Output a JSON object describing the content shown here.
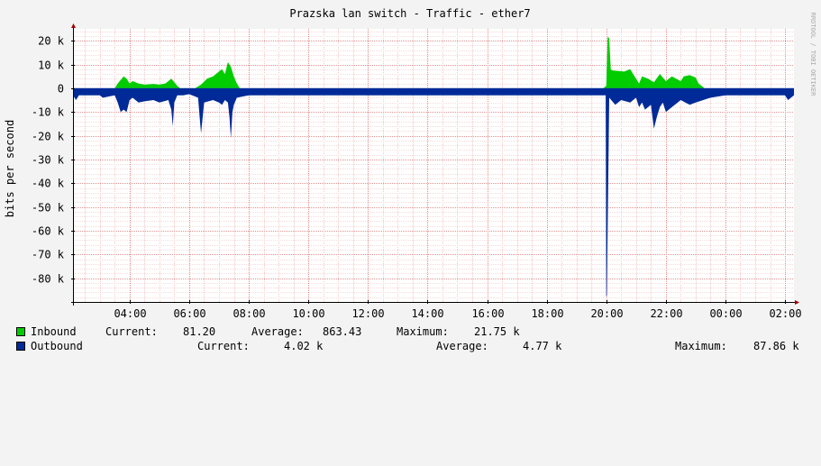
{
  "chart_data": {
    "type": "area",
    "title": "Prazska lan switch - Traffic - ether7",
    "ylabel": "bits per second",
    "watermark": "RRDTOOL / TOBI OETIKER",
    "ylim": [
      -90000,
      25000
    ],
    "y_ticks": [
      20000,
      10000,
      0,
      -10000,
      -20000,
      -30000,
      -40000,
      -50000,
      -60000,
      -70000,
      -80000
    ],
    "y_tick_labels": [
      "20 k",
      "10 k",
      "0",
      "-10 k",
      "-20 k",
      "-30 k",
      "-40 k",
      "-50 k",
      "-60 k",
      "-70 k",
      "-80 k"
    ],
    "x_ticks": [
      4,
      6,
      8,
      10,
      12,
      14,
      16,
      18,
      20,
      22,
      24,
      26
    ],
    "x_tick_labels": [
      "04:00",
      "06:00",
      "08:00",
      "10:00",
      "12:00",
      "14:00",
      "16:00",
      "18:00",
      "20:00",
      "22:00",
      "00:00",
      "02:00"
    ],
    "xlim": [
      2.1,
      26.3
    ],
    "grid": true,
    "series": [
      {
        "name": "Inbound",
        "color": "#00cc00",
        "x": [
          2.1,
          3.5,
          3.6,
          3.8,
          3.9,
          4.0,
          4.1,
          4.3,
          4.5,
          4.8,
          5.0,
          5.2,
          5.3,
          5.4,
          5.5,
          5.6,
          5.7,
          6.2,
          6.4,
          6.6,
          6.8,
          7.0,
          7.1,
          7.2,
          7.3,
          7.4,
          7.5,
          7.6,
          7.7,
          19.9,
          20.0,
          20.05,
          20.1,
          20.15,
          20.2,
          20.6,
          20.8,
          20.9,
          21.0,
          21.1,
          21.2,
          21.4,
          21.6,
          21.8,
          22.0,
          22.2,
          22.5,
          22.6,
          22.8,
          23.0,
          23.1,
          23.3,
          26.3
        ],
        "values": [
          0,
          0,
          2000,
          5000,
          4000,
          2000,
          3000,
          2000,
          1500,
          1800,
          1500,
          2000,
          3000,
          4000,
          2500,
          1000,
          0,
          0,
          1500,
          4000,
          5000,
          7000,
          8000,
          6000,
          11000,
          9000,
          5000,
          2000,
          0,
          0,
          1000,
          21750,
          21000,
          8000,
          7500,
          7000,
          8000,
          6000,
          4000,
          2000,
          5000,
          4000,
          2500,
          6000,
          3000,
          5000,
          3000,
          5000,
          5500,
          4500,
          2000,
          0,
          0
        ]
      },
      {
        "name": "Outbound",
        "color": "#002a97",
        "x": [
          2.1,
          2.2,
          2.3,
          3.0,
          3.1,
          3.5,
          3.6,
          3.7,
          3.8,
          3.9,
          4.0,
          4.1,
          4.3,
          4.5,
          4.8,
          5.0,
          5.3,
          5.4,
          5.45,
          5.5,
          5.6,
          5.8,
          6.0,
          6.3,
          6.35,
          6.4,
          6.5,
          6.8,
          7.0,
          7.1,
          7.2,
          7.3,
          7.35,
          7.4,
          7.45,
          7.5,
          7.6,
          8.0,
          9.0,
          10.0,
          11.0,
          12.0,
          13.0,
          14.0,
          15.0,
          16.0,
          17.0,
          18.0,
          19.0,
          19.9,
          19.98,
          20.0,
          20.02,
          20.1,
          20.3,
          20.5,
          20.8,
          21.0,
          21.1,
          21.2,
          21.3,
          21.5,
          21.6,
          21.7,
          21.8,
          21.9,
          22.0,
          22.2,
          22.5,
          22.8,
          23.0,
          23.5,
          24.0,
          24.5,
          25.0,
          25.5,
          26.0,
          26.1,
          26.2,
          26.3
        ],
        "values": [
          -3000,
          -5000,
          -3000,
          -3000,
          -4000,
          -3000,
          -6000,
          -10000,
          -9000,
          -10000,
          -5000,
          -4000,
          -6000,
          -5500,
          -5000,
          -6000,
          -5000,
          -9000,
          -16000,
          -6000,
          -3000,
          -3000,
          -2500,
          -4000,
          -12000,
          -19000,
          -6000,
          -5000,
          -6000,
          -7000,
          -5000,
          -6000,
          -12000,
          -21000,
          -10000,
          -7000,
          -4000,
          -3000,
          -3000,
          -3000,
          -3000,
          -3000,
          -3000,
          -3000,
          -3000,
          -3000,
          -3000,
          -3000,
          -3000,
          -3000,
          -3000,
          -87860,
          -87000,
          -4000,
          -7000,
          -5000,
          -6000,
          -4000,
          -8000,
          -6000,
          -9000,
          -7000,
          -17000,
          -12000,
          -8000,
          -6000,
          -10000,
          -8000,
          -5000,
          -7000,
          -6000,
          -4000,
          -3000,
          -3000,
          -3000,
          -3000,
          -3000,
          -5000,
          -4000,
          -3000
        ]
      }
    ]
  },
  "legend": {
    "inbound": {
      "label": "Inbound",
      "current_label": "Current:",
      "current": "81.20",
      "average_label": "Average:",
      "average": "863.43",
      "maximum_label": "Maximum:",
      "maximum": "21.75 k"
    },
    "outbound": {
      "label": "Outbound",
      "current_label": "Current:",
      "current": "4.02 k",
      "average_label": "Average:",
      "average": "4.77 k",
      "maximum_label": "Maximum:",
      "maximum": "87.86 k"
    }
  }
}
